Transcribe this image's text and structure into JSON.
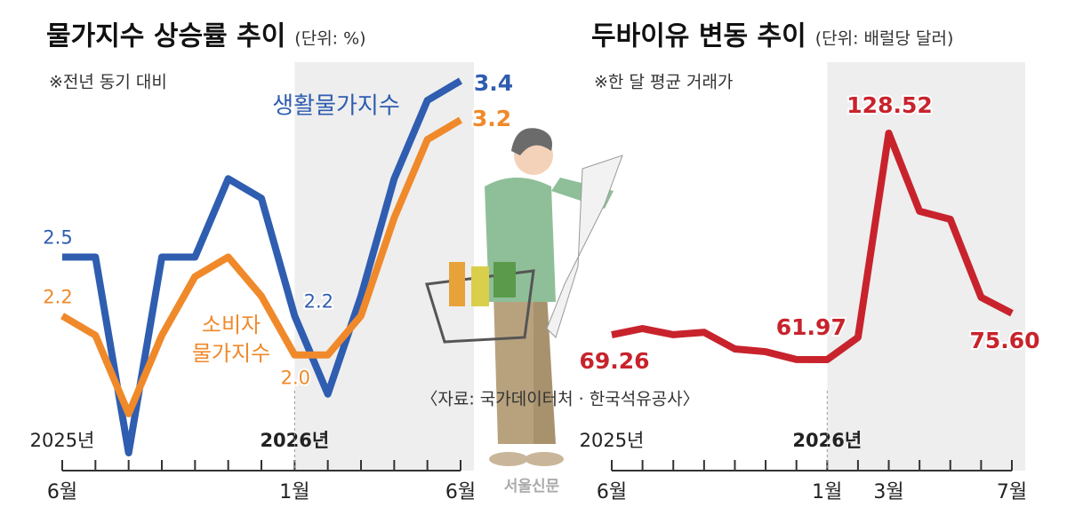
{
  "chart_data": [
    {
      "type": "line",
      "title": "물가지수 상승률 추이",
      "subtitle": "(단위: %)",
      "note": "※전년 동기 대비",
      "categories": [
        "6월",
        null,
        null,
        null,
        null,
        null,
        null,
        "1월",
        null,
        null,
        null,
        null,
        "6월"
      ],
      "year_labels": [
        "2025년",
        null,
        null,
        null,
        null,
        null,
        null,
        "2026년",
        null,
        null,
        null,
        null,
        null
      ],
      "series": [
        {
          "name": "생활물가지수",
          "color": "#2f5db0",
          "values": [
            2.5,
            2.5,
            1.5,
            2.5,
            2.5,
            2.9,
            2.8,
            2.2,
            1.8,
            2.3,
            2.9,
            3.3,
            3.4
          ],
          "value_labels": [
            "2.5",
            null,
            null,
            null,
            null,
            null,
            null,
            "2.2",
            null,
            null,
            null,
            null,
            "3.4"
          ]
        },
        {
          "name": "소비자\n물가지수",
          "color": "#f0892a",
          "values": [
            2.2,
            2.1,
            1.7,
            2.1,
            2.4,
            2.5,
            2.3,
            2.0,
            2.0,
            2.2,
            2.7,
            3.1,
            3.2
          ],
          "value_labels": [
            "2.2",
            null,
            null,
            null,
            null,
            null,
            null,
            "2.0",
            null,
            null,
            null,
            null,
            "3.2"
          ]
        }
      ]
    },
    {
      "type": "line",
      "title": "두바이유 변동 추이",
      "subtitle": "(단위: 배럴당 달러)",
      "note": "※한 달 평균 거래가",
      "categories": [
        "6월",
        null,
        null,
        null,
        null,
        null,
        null,
        "1월",
        null,
        "3월",
        null,
        null,
        null,
        "7월"
      ],
      "year_labels": [
        "2025년",
        null,
        null,
        null,
        null,
        null,
        null,
        "2026년",
        null,
        null,
        null,
        null,
        null,
        null
      ],
      "series": [
        {
          "name": null,
          "color": "#c8232c",
          "values": [
            69.26,
            71.1,
            69.3,
            70.0,
            65.1,
            64.3,
            62.0,
            61.97,
            68.5,
            128.52,
            105.6,
            103.2,
            80.3,
            75.6
          ],
          "value_labels": [
            "69.26",
            null,
            null,
            null,
            null,
            null,
            null,
            "61.97",
            null,
            "128.52",
            null,
            null,
            null,
            "75.60"
          ]
        }
      ]
    }
  ],
  "source": "〈자료: 국가데이터처 · 한국석유공사〉",
  "credit": "서울신문"
}
